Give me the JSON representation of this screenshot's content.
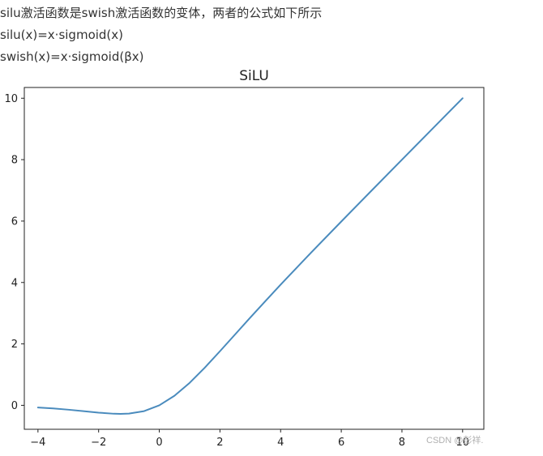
{
  "text": {
    "line1": "silu激活函数是swish激活函数的变体，两者的公式如下所示",
    "line2": "silu(x)=x·sigmoid(x)",
    "line3": "swish(x)=x·sigmoid(βx)"
  },
  "watermark": "CSDN @彭祥.",
  "chart_data": {
    "type": "line",
    "title": "SiLU",
    "xlabel": "",
    "ylabel": "",
    "xlim": [
      -4.45,
      10.7
    ],
    "ylim": [
      -0.78,
      10.35
    ],
    "xticks": [
      -4,
      -2,
      0,
      2,
      4,
      6,
      8,
      10
    ],
    "xtick_labels": [
      "−4",
      "−2",
      "0",
      "2",
      "4",
      "6",
      "8",
      "10"
    ],
    "yticks": [
      0,
      2,
      4,
      6,
      8,
      10
    ],
    "ytick_labels": [
      "0",
      "2",
      "4",
      "6",
      "8",
      "10"
    ],
    "grid": false,
    "legend": "none",
    "line_color": "#4a8bbd",
    "series": [
      {
        "x": [
          -4,
          -3.5,
          -3,
          -2.5,
          -2,
          -1.5,
          -1.28,
          -1,
          -0.5,
          0,
          0.5,
          1,
          1.5,
          2,
          2.5,
          3,
          3.5,
          4,
          5,
          6,
          7,
          8,
          9,
          10
        ],
        "values": [
          -0.072,
          -0.102,
          -0.142,
          -0.189,
          -0.238,
          -0.274,
          -0.278,
          -0.269,
          -0.189,
          0,
          0.311,
          0.731,
          1.226,
          1.762,
          2.309,
          2.858,
          3.395,
          3.928,
          4.967,
          5.985,
          6.994,
          7.997,
          8.999,
          10
        ]
      }
    ]
  }
}
